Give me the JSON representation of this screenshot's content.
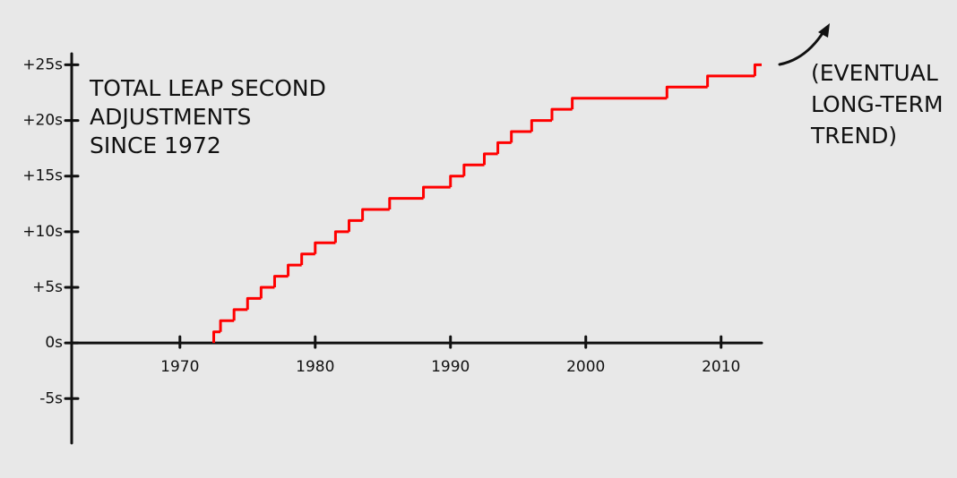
{
  "chart_data": {
    "type": "step",
    "title": [
      "TOTAL LEAP SECOND",
      "ADJUSTMENTS",
      "SINCE 1972"
    ],
    "annotation": [
      "(EVENTUAL",
      "LONG-TERM",
      "TREND)"
    ],
    "x": [
      1972.5,
      1973,
      1974,
      1975,
      1976,
      1977,
      1978,
      1979,
      1980,
      1981.5,
      1982.5,
      1983.5,
      1985.5,
      1988,
      1990,
      1991,
      1992.5,
      1993.5,
      1994.5,
      1996,
      1997.5,
      1999,
      2006,
      2009,
      2012.5
    ],
    "values": [
      1,
      2,
      3,
      4,
      5,
      6,
      7,
      8,
      9,
      10,
      11,
      12,
      13,
      14,
      15,
      16,
      17,
      18,
      19,
      20,
      21,
      22,
      23,
      24,
      25
    ],
    "color": "#ff0000",
    "xlim": [
      1962,
      2013
    ],
    "ylim": [
      -9,
      26
    ],
    "xticks": [
      1970,
      1980,
      1990,
      2000,
      2010
    ],
    "yticks": [
      {
        "value": 25,
        "label": "+25s"
      },
      {
        "value": 20,
        "label": "+20s"
      },
      {
        "value": 15,
        "label": "+15s"
      },
      {
        "value": 10,
        "label": "+10s"
      },
      {
        "value": 5,
        "label": "+5s"
      },
      {
        "value": 0,
        "label": "0s"
      },
      {
        "value": -5,
        "label": "-5s"
      }
    ]
  }
}
